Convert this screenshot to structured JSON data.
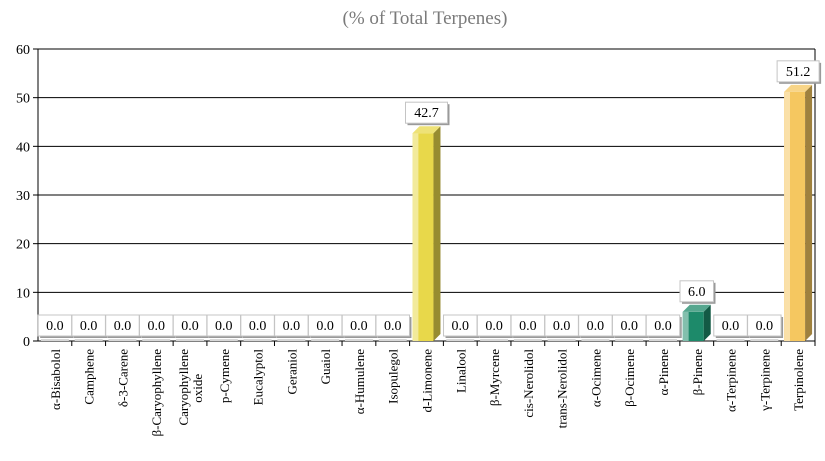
{
  "chart_data": {
    "type": "bar",
    "title": "(% of Total Terpenes)",
    "ylim": [
      0,
      60
    ],
    "yticks": [
      0,
      10,
      20,
      30,
      40,
      50,
      60
    ],
    "grid": true,
    "categories": [
      "α-Bisabolol",
      "Camphene",
      "δ-3-Carene",
      "β-Caryophyllene",
      "Caryophyllene oxide",
      "p-Cymene",
      "Eucalyptol",
      "Geraniol",
      "Guaiol",
      "α-Humulene",
      "Isopulegol",
      "d-Limonene",
      "Linalool",
      "β-Myrcene",
      "cis-Nerolidol",
      "trans-Nerolidol",
      "α-Ocimene",
      "β-Ocimene",
      "α-Pinene",
      "β-Pinene",
      "α-Terpinene",
      "γ-Terpinene",
      "Terpinolene"
    ],
    "values": [
      0.0,
      0.0,
      0.0,
      0.0,
      0.0,
      0.0,
      0.0,
      0.0,
      0.0,
      0.0,
      0.0,
      42.7,
      0.0,
      0.0,
      0.0,
      0.0,
      0.0,
      0.0,
      0.0,
      6.0,
      0.0,
      0.0,
      51.2
    ],
    "data_labels": [
      "0.0",
      "0.0",
      "0.0",
      "0.0",
      "0.0",
      "0.0",
      "0.0",
      "0.0",
      "0.0",
      "0.0",
      "0.0",
      "42.7",
      "0.0",
      "0.0",
      "0.0",
      "0.0",
      "0.0",
      "0.0",
      "0.0",
      "6.0",
      "0.0",
      "0.0",
      "51.2"
    ],
    "bar_colors": {
      "d-Limonene": "#e8d84a",
      "β-Pinene": "#1d8a6a",
      "Terpinolene": "#f5c760"
    }
  }
}
